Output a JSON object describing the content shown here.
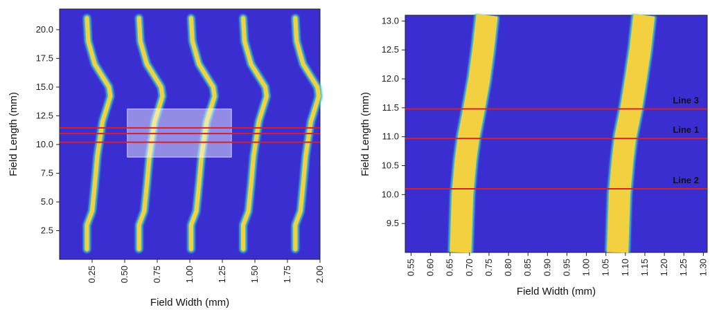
{
  "colors": {
    "background": "#3a2ed0",
    "trace_core": "#f2d040",
    "trace_edge": "#42c4c8",
    "marker_line": "#d6202a",
    "highlight_box": "#ffffff"
  },
  "chart_data": [
    {
      "type": "heatmap",
      "xlabel": "Field Width (mm)",
      "ylabel": "Field Length (mm)",
      "xlim": [
        0.0,
        2.0
      ],
      "ylim": [
        0.0,
        21.8
      ],
      "x_ticks": [
        "0.25",
        "0.50",
        "0.75",
        "1.00",
        "1.25",
        "1.50",
        "1.75",
        "2.00"
      ],
      "y_ticks": [
        "2.5",
        "5.0",
        "7.5",
        "10.0",
        "12.5",
        "15.0",
        "17.5",
        "20.0"
      ],
      "x_tick_values": [
        0.25,
        0.5,
        0.75,
        1.0,
        1.25,
        1.5,
        1.75,
        2.0
      ],
      "y_tick_values": [
        2.5,
        5.0,
        7.5,
        10.0,
        12.5,
        15.0,
        17.5,
        20.0
      ],
      "trace_offsets": [
        0.21,
        0.61,
        1.01,
        1.41,
        1.81
      ],
      "trace_shape": [
        {
          "y": 0.9,
          "dx": 0.0
        },
        {
          "y": 3.0,
          "dx": 0.0
        },
        {
          "y": 4.2,
          "dx": 0.04
        },
        {
          "y": 6.5,
          "dx": 0.06
        },
        {
          "y": 9.0,
          "dx": 0.08
        },
        {
          "y": 12.0,
          "dx": 0.12
        },
        {
          "y": 14.2,
          "dx": 0.18
        },
        {
          "y": 15.0,
          "dx": 0.17
        },
        {
          "y": 17.0,
          "dx": 0.06
        },
        {
          "y": 19.0,
          "dx": 0.01
        },
        {
          "y": 21.0,
          "dx": 0.0
        }
      ],
      "highlight_box": {
        "x0": 0.52,
        "x1": 1.32,
        "y0": 8.9,
        "y1": 13.1
      },
      "marker_lines_y": [
        10.2,
        10.95,
        11.45
      ]
    },
    {
      "type": "heatmap",
      "xlabel": "Field Width (mm)",
      "ylabel": "Field Length (mm)",
      "xlim": [
        0.535,
        1.31
      ],
      "ylim": [
        9.0,
        13.1
      ],
      "x_ticks": [
        "0.55",
        "0.60",
        "0.65",
        "0.70",
        "0.75",
        "0.80",
        "0.85",
        "0.90",
        "0.95",
        "1.00",
        "1.05",
        "1.10",
        "1.15",
        "1.20",
        "1.25",
        "1.30"
      ],
      "y_ticks": [
        "9.5",
        "10.0",
        "10.5",
        "11.0",
        "11.5",
        "12.0",
        "12.5",
        "13.0"
      ],
      "x_tick_values": [
        0.55,
        0.6,
        0.65,
        0.7,
        0.75,
        0.8,
        0.85,
        0.9,
        0.95,
        1.0,
        1.05,
        1.1,
        1.15,
        1.2,
        1.25,
        1.3
      ],
      "y_tick_values": [
        9.5,
        10.0,
        10.5,
        11.0,
        11.5,
        12.0,
        12.5,
        13.0
      ],
      "trace_width": 0.055,
      "traces": [
        [
          {
            "y": 9.0,
            "x": 0.677
          },
          {
            "y": 10.0,
            "x": 0.682
          },
          {
            "y": 10.6,
            "x": 0.69
          },
          {
            "y": 11.0,
            "x": 0.698
          },
          {
            "y": 11.5,
            "x": 0.712
          },
          {
            "y": 12.0,
            "x": 0.725
          },
          {
            "y": 12.5,
            "x": 0.735
          },
          {
            "y": 13.1,
            "x": 0.745
          }
        ],
        [
          {
            "y": 9.0,
            "x": 1.08
          },
          {
            "y": 10.0,
            "x": 1.085
          },
          {
            "y": 10.6,
            "x": 1.093
          },
          {
            "y": 11.0,
            "x": 1.1
          },
          {
            "y": 11.5,
            "x": 1.115
          },
          {
            "y": 12.0,
            "x": 1.127
          },
          {
            "y": 12.5,
            "x": 1.138
          },
          {
            "y": 13.1,
            "x": 1.148
          }
        ]
      ],
      "marker_lines": [
        {
          "y": 11.48,
          "label": "Line 3"
        },
        {
          "y": 10.97,
          "label": "Line 1"
        },
        {
          "y": 10.1,
          "label": "Line 2"
        }
      ]
    }
  ]
}
